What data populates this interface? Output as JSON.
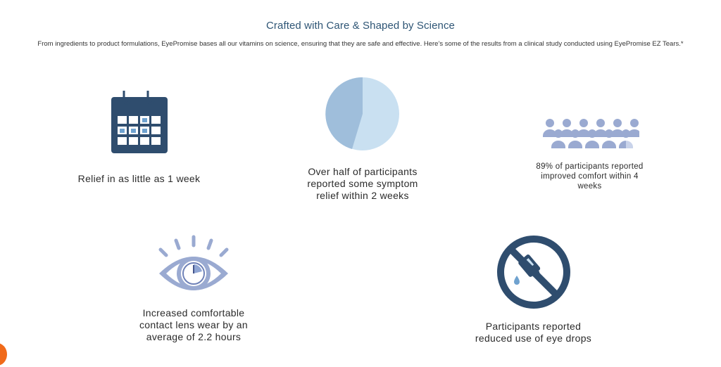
{
  "section": {
    "title": "Crafted with Care & Shaped by Science",
    "subtitle": "From ingredients to product formulations, EyePromise bases all our vitamins on science, ensuring that they are safe and effective. Here’s some of the results from a clinical study conducted using EyePromise EZ Tears.*"
  },
  "colors": {
    "navy": "#2f4d6e",
    "light_blue": "#9fbedb",
    "pale_blue": "#c9e0f1",
    "periwinkle": "#9aaad1",
    "chat_orange": "#f06a1a"
  },
  "stats": [
    {
      "icon": "calendar-icon",
      "text": "Relief in as little as 1 week"
    },
    {
      "icon": "pie-chart-icon",
      "text": "Over half of participants reported some symptom relief within 2 weeks",
      "share_fraction": 0.55
    },
    {
      "icon": "people-group-icon",
      "text": "89% of participants reported improved comfort within 4 weeks"
    },
    {
      "icon": "eye-clock-icon",
      "text": "Increased comfortable contact lens wear by an average of 2.2 hours"
    },
    {
      "icon": "no-eye-drops-icon",
      "text": "Participants reported reduced use of eye drops"
    }
  ],
  "chat": {
    "icon": "chat-bubble-icon"
  }
}
